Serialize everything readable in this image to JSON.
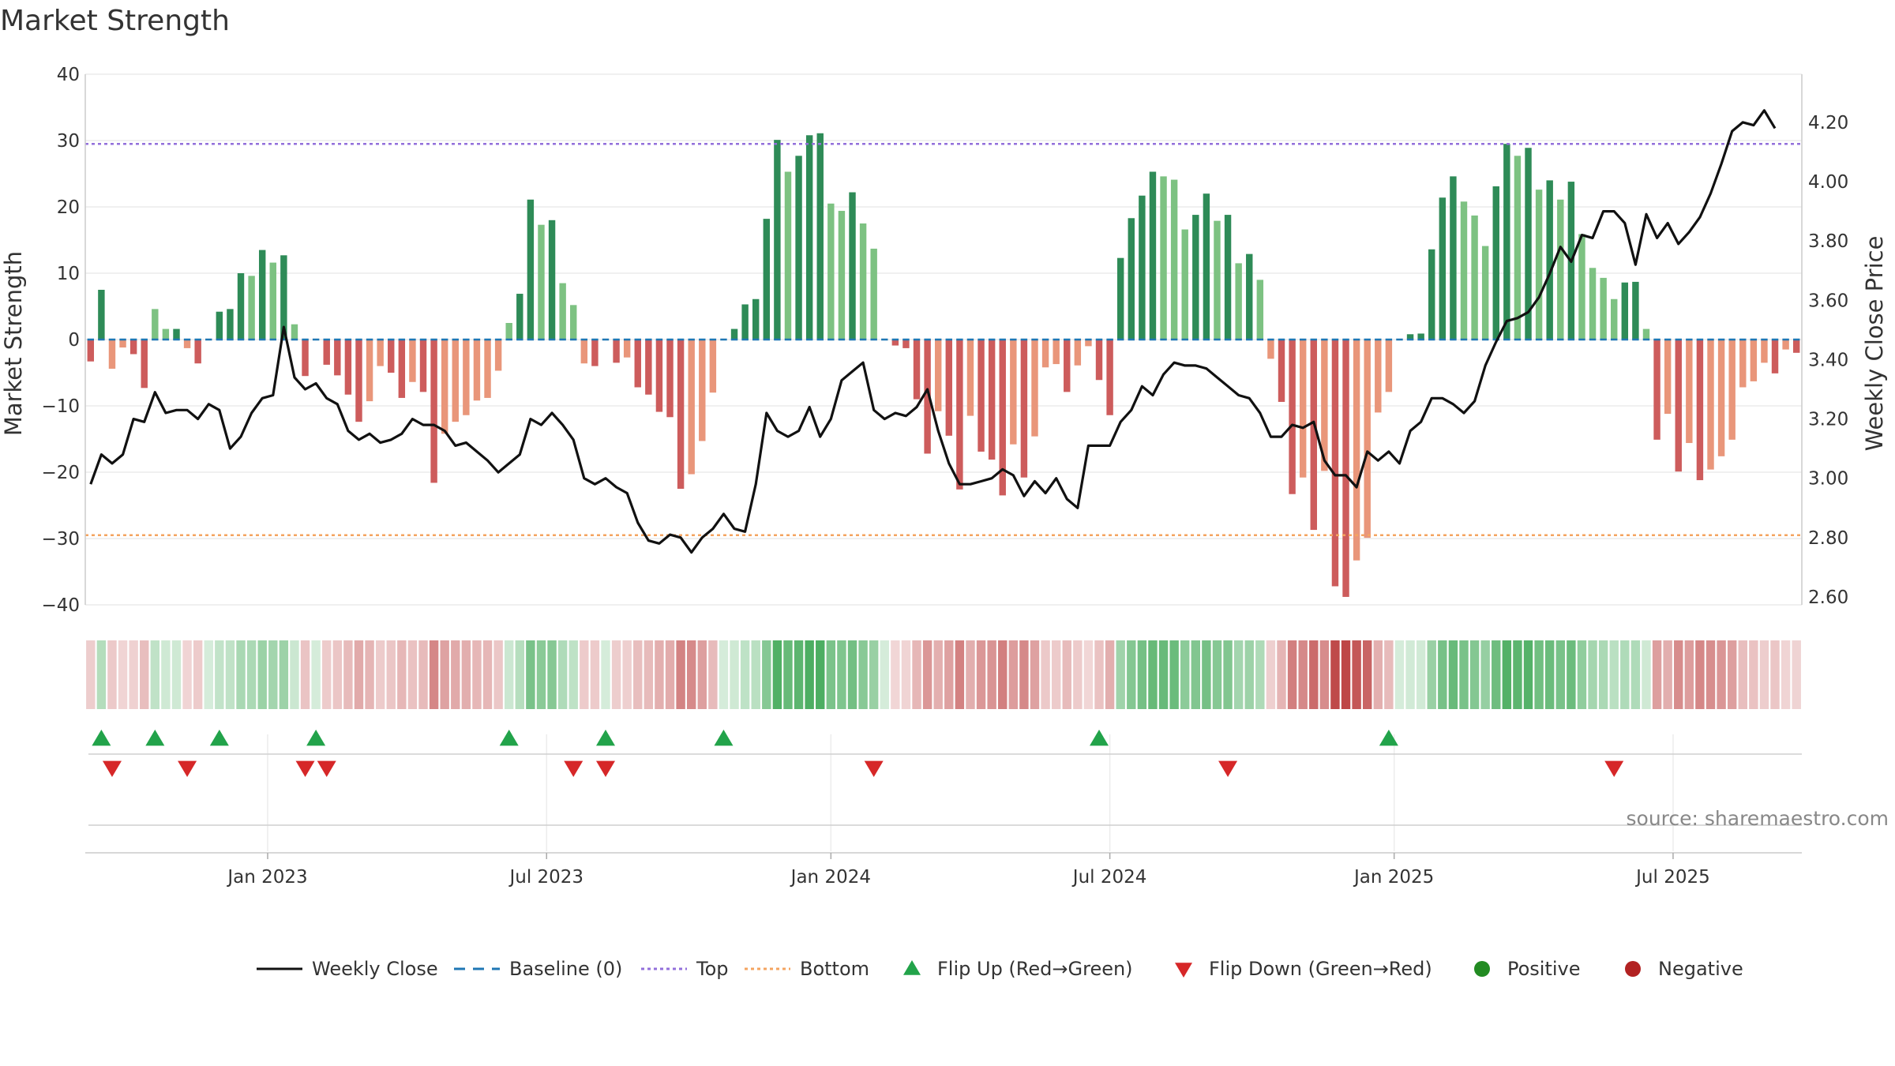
{
  "chart_data": {
    "type": "bar",
    "title": "Market Strength",
    "ylabel": "Market Strength",
    "y2label": "Weekly Close Price",
    "ylim": [
      -43,
      42
    ],
    "y2lim": [
      2.56,
      4.37
    ],
    "yticks": [
      "40",
      "30",
      "20",
      "10",
      "0",
      "−10",
      "−20",
      "−30",
      "−40"
    ],
    "y2ticks": [
      "4.20",
      "4.00",
      "3.80",
      "3.60",
      "3.40",
      "3.20",
      "3.00",
      "2.80",
      "2.60"
    ],
    "xticks": [
      {
        "label": "Jan 2023",
        "week": 17
      },
      {
        "label": "Jul 2023",
        "week": 43
      },
      {
        "label": "Jan 2024",
        "week": 69.5
      },
      {
        "label": "Jul 2024",
        "week": 95.5
      },
      {
        "label": "Jan 2025",
        "week": 122
      },
      {
        "label": "Jul 2025",
        "week": 148
      }
    ],
    "thresholds": {
      "top": 29.5,
      "bottom": -29.5,
      "baseline": 0
    },
    "strength": [
      -3.3,
      7.5,
      -4.4,
      -1.2,
      -2.2,
      -7.3,
      4.6,
      1.6,
      1.6,
      -1.3,
      -3.6,
      0,
      4.2,
      4.6,
      10,
      9.6,
      13.5,
      11.6,
      12.7,
      2.3,
      -5.5,
      0,
      -3.8,
      -5.4,
      -8.3,
      -12.4,
      -9.3,
      -4,
      -5,
      -8.8,
      -6.4,
      -7.9,
      -21.6,
      -14.2,
      -12.4,
      -11.4,
      -9.2,
      -8.8,
      -4.7,
      2.5,
      6.9,
      21.1,
      17.3,
      18,
      8.5,
      5.2,
      -3.6,
      -4,
      0,
      -3.5,
      -2.7,
      -7.2,
      -8.3,
      -10.9,
      -11.7,
      -22.5,
      -20.3,
      -15.3,
      -8,
      0,
      1.6,
      5.3,
      6.1,
      18.2,
      30.1,
      25.3,
      27.7,
      30.8,
      31.1,
      20.5,
      19.4,
      22.2,
      17.5,
      13.7,
      0,
      -0.9,
      -1.3,
      -9,
      -17.2,
      -10.8,
      -14.5,
      -22.6,
      -11.5,
      -16.9,
      -18.1,
      -23.5,
      -15.8,
      -20.8,
      -14.6,
      -4.2,
      -3.7,
      -7.9,
      -3.9,
      -1,
      -6.1,
      -11.4,
      12.3,
      18.3,
      21.7,
      25.3,
      24.6,
      24.1,
      16.6,
      18.8,
      22,
      17.9,
      18.8,
      11.5,
      12.9,
      9,
      -2.9,
      -9.4,
      -23.3,
      -20.8,
      -28.7,
      -19.8,
      -37.2,
      -38.8,
      -33.3,
      -29.9,
      -11,
      -7.9,
      0,
      0.8,
      0.9,
      13.6,
      21.4,
      24.6,
      20.8,
      18.7,
      14.1,
      23.1,
      29.5,
      27.7,
      28.9,
      22.6,
      24,
      21.1,
      23.8,
      15.9,
      10.8,
      9.3,
      6.1,
      8.6,
      8.7,
      1.6,
      -15.1,
      -11.2,
      -19.9,
      -15.6,
      -21.2,
      -19.6,
      -17.6,
      -15.1,
      -7.2,
      -6.3,
      -3.5,
      -5.1,
      -1.5,
      -2
    ],
    "close": [
      2.98,
      3.08,
      3.05,
      3.08,
      3.2,
      3.19,
      3.29,
      3.22,
      3.23,
      3.23,
      3.2,
      3.25,
      3.23,
      3.1,
      3.14,
      3.22,
      3.27,
      3.28,
      3.51,
      3.34,
      3.3,
      3.32,
      3.27,
      3.25,
      3.16,
      3.13,
      3.15,
      3.12,
      3.13,
      3.15,
      3.2,
      3.18,
      3.18,
      3.16,
      3.11,
      3.12,
      3.09,
      3.06,
      3.02,
      3.05,
      3.08,
      3.2,
      3.18,
      3.22,
      3.18,
      3.13,
      3.0,
      2.98,
      3.0,
      2.97,
      2.95,
      2.85,
      2.79,
      2.78,
      2.81,
      2.8,
      2.75,
      2.8,
      2.83,
      2.88,
      2.83,
      2.82,
      2.98,
      3.22,
      3.16,
      3.14,
      3.16,
      3.24,
      3.14,
      3.2,
      3.33,
      3.36,
      3.39,
      3.23,
      3.2,
      3.22,
      3.21,
      3.24,
      3.3,
      3.16,
      3.05,
      2.98,
      2.98,
      2.99,
      3.0,
      3.03,
      3.01,
      2.94,
      2.99,
      2.95,
      3.0,
      2.93,
      2.9,
      3.11,
      3.11,
      3.11,
      3.19,
      3.23,
      3.31,
      3.28,
      3.35,
      3.39,
      3.38,
      3.38,
      3.37,
      3.34,
      3.31,
      3.28,
      3.27,
      3.22,
      3.14,
      3.14,
      3.18,
      3.17,
      3.19,
      3.06,
      3.01,
      3.01,
      2.97,
      3.09,
      3.06,
      3.09,
      3.05,
      3.16,
      3.19,
      3.27,
      3.27,
      3.25,
      3.22,
      3.26,
      3.38,
      3.46,
      3.53,
      3.54,
      3.56,
      3.61,
      3.69,
      3.78,
      3.73,
      3.82,
      3.81,
      3.9,
      3.9,
      3.86,
      3.72,
      3.89,
      3.81,
      3.86,
      3.79,
      3.83,
      3.88,
      3.96,
      4.06,
      4.17,
      4.2,
      4.19,
      4.24,
      4.18
    ],
    "flip_up_weeks": [
      1,
      6,
      12,
      21,
      39,
      48,
      59,
      94,
      121
    ],
    "flip_down_weeks": [
      2,
      9,
      20,
      22,
      45,
      48,
      73,
      106,
      142
    ],
    "source": "source: sharemaestro.com",
    "legend": [
      "Weekly Close",
      "Baseline (0)",
      "Top",
      "Bottom",
      "Flip Up (Red→Green)",
      "Flip Down (Green→Red)",
      "Positive",
      "Negative"
    ],
    "colors": {
      "pos_strong": "#2e8b57",
      "pos_light": "#7dc282",
      "neg_strong": "#cd5c5c",
      "neg_light": "#e9967a",
      "top": "#9370db",
      "bottom": "#f4a460",
      "baseline": "#1f77b4",
      "price": "#111111",
      "flip_up": "#22a34a",
      "flip_down": "#d62728",
      "positive_dot": "#228b22",
      "negative_dot": "#b22222",
      "grid": "#ececec"
    }
  }
}
